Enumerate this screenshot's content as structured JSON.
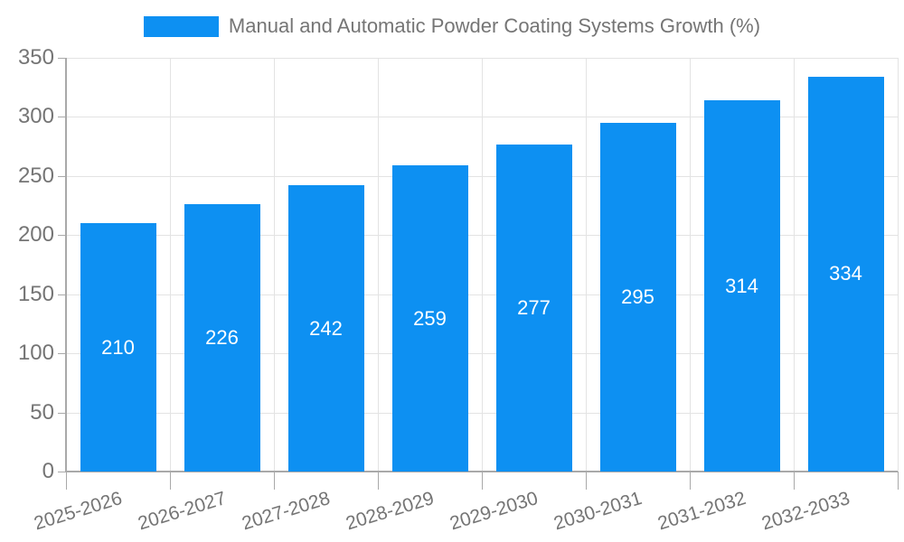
{
  "chart_data": {
    "type": "bar",
    "title": "Manual and Automatic Powder Coating Systems Growth (%)",
    "categories": [
      "2025-2026",
      "2026-2027",
      "2027-2028",
      "2028-2029",
      "2029-2030",
      "2030-2031",
      "2031-2032",
      "2032-2033"
    ],
    "values": [
      210,
      226,
      242,
      259,
      277,
      295,
      314,
      334
    ],
    "xlabel": "",
    "ylabel": "",
    "ylim": [
      0,
      350
    ],
    "yticks": [
      0,
      50,
      100,
      150,
      200,
      250,
      300,
      350
    ],
    "grid": true,
    "legend_position": "top",
    "bar_color": "#0D90F2",
    "bar_label_color": "#FFFFFF",
    "axis_text_color": "#757575",
    "grid_color": "#E3E3E3",
    "axis_line_color": "#A9A9A9",
    "background_color": "#FFFFFF"
  }
}
